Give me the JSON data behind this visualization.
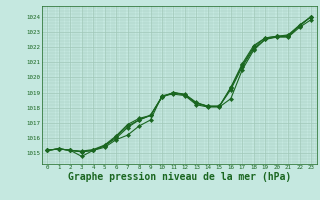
{
  "background_color": "#c5e8e0",
  "grid_color": "#a0c8b8",
  "line_color": "#1a6620",
  "xlabel": "Graphe pression niveau de la mer (hPa)",
  "xlabel_fontsize": 7,
  "ylabel_ticks": [
    1015,
    1016,
    1017,
    1018,
    1019,
    1020,
    1021,
    1022,
    1023,
    1024
  ],
  "xlim": [
    -0.5,
    23.5
  ],
  "ylim": [
    1014.3,
    1024.7
  ],
  "x_ticks": [
    0,
    1,
    2,
    3,
    4,
    5,
    6,
    7,
    8,
    9,
    10,
    11,
    12,
    13,
    14,
    15,
    16,
    17,
    18,
    19,
    20,
    21,
    22,
    23
  ],
  "series": [
    [
      1015.2,
      1015.3,
      1015.2,
      1014.8,
      1015.2,
      1015.4,
      1015.9,
      1016.2,
      1016.8,
      1017.2,
      1018.8,
      1018.9,
      1018.8,
      1018.2,
      1018.05,
      1018.05,
      1018.6,
      1020.5,
      1021.8,
      1022.5,
      1022.65,
      1022.65,
      1023.3,
      1023.8
    ],
    [
      1015.2,
      1015.3,
      1015.2,
      1015.1,
      1015.2,
      1015.5,
      1016.0,
      1016.7,
      1017.2,
      1017.5,
      1018.7,
      1019.0,
      1018.85,
      1018.3,
      1018.1,
      1018.1,
      1019.2,
      1020.7,
      1021.9,
      1022.5,
      1022.7,
      1022.7,
      1023.4,
      1024.0
    ],
    [
      1015.2,
      1015.3,
      1015.2,
      1015.1,
      1015.2,
      1015.5,
      1016.1,
      1016.8,
      1017.2,
      1017.5,
      1018.7,
      1019.0,
      1018.85,
      1018.3,
      1018.1,
      1018.1,
      1019.3,
      1020.8,
      1022.0,
      1022.6,
      1022.7,
      1022.75,
      1023.4,
      1024.0
    ],
    [
      1015.2,
      1015.3,
      1015.2,
      1015.15,
      1015.25,
      1015.55,
      1016.15,
      1016.9,
      1017.3,
      1017.5,
      1018.75,
      1019.0,
      1018.9,
      1018.35,
      1018.1,
      1018.1,
      1019.35,
      1020.9,
      1022.1,
      1022.6,
      1022.7,
      1022.8,
      1023.45,
      1024.0
    ]
  ],
  "marker_series": [
    0,
    1,
    2,
    3
  ],
  "markers": "D",
  "marker_size": 2.2,
  "lw": 0.8
}
